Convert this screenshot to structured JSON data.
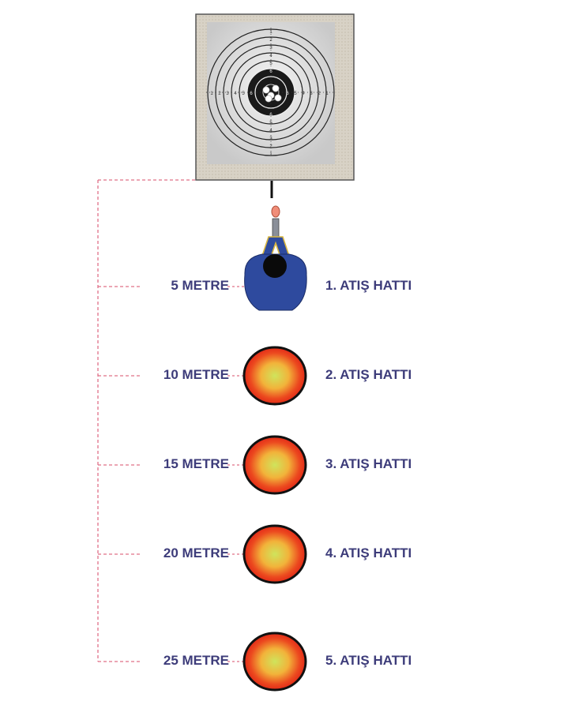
{
  "target": {
    "icon": "shooting-target-icon",
    "ring_numbers": [
      "1",
      "2",
      "3",
      "4",
      "5",
      "6",
      "7",
      "8",
      "9"
    ]
  },
  "shooter": {
    "icon": "shooter-top-view-icon"
  },
  "colors": {
    "label_text": "#3d3c7a",
    "dashed_line": "#e07088",
    "shooter_body": "#2e4a9e",
    "position_outer": "#e8361c",
    "position_inner": "#c9e05a"
  },
  "positions": [
    {
      "distance": "5 METRE",
      "line": "1. ATIŞ HATTI",
      "marker": "shooter"
    },
    {
      "distance": "10 METRE",
      "line": "2. ATIŞ HATTI",
      "marker": "circle"
    },
    {
      "distance": "15 METRE",
      "line": "3. ATIŞ HATTI",
      "marker": "circle"
    },
    {
      "distance": "20 METRE",
      "line": "4. ATIŞ HATTI",
      "marker": "circle"
    },
    {
      "distance": "25 METRE",
      "line": "5. ATIŞ HATTI",
      "marker": "circle"
    }
  ]
}
